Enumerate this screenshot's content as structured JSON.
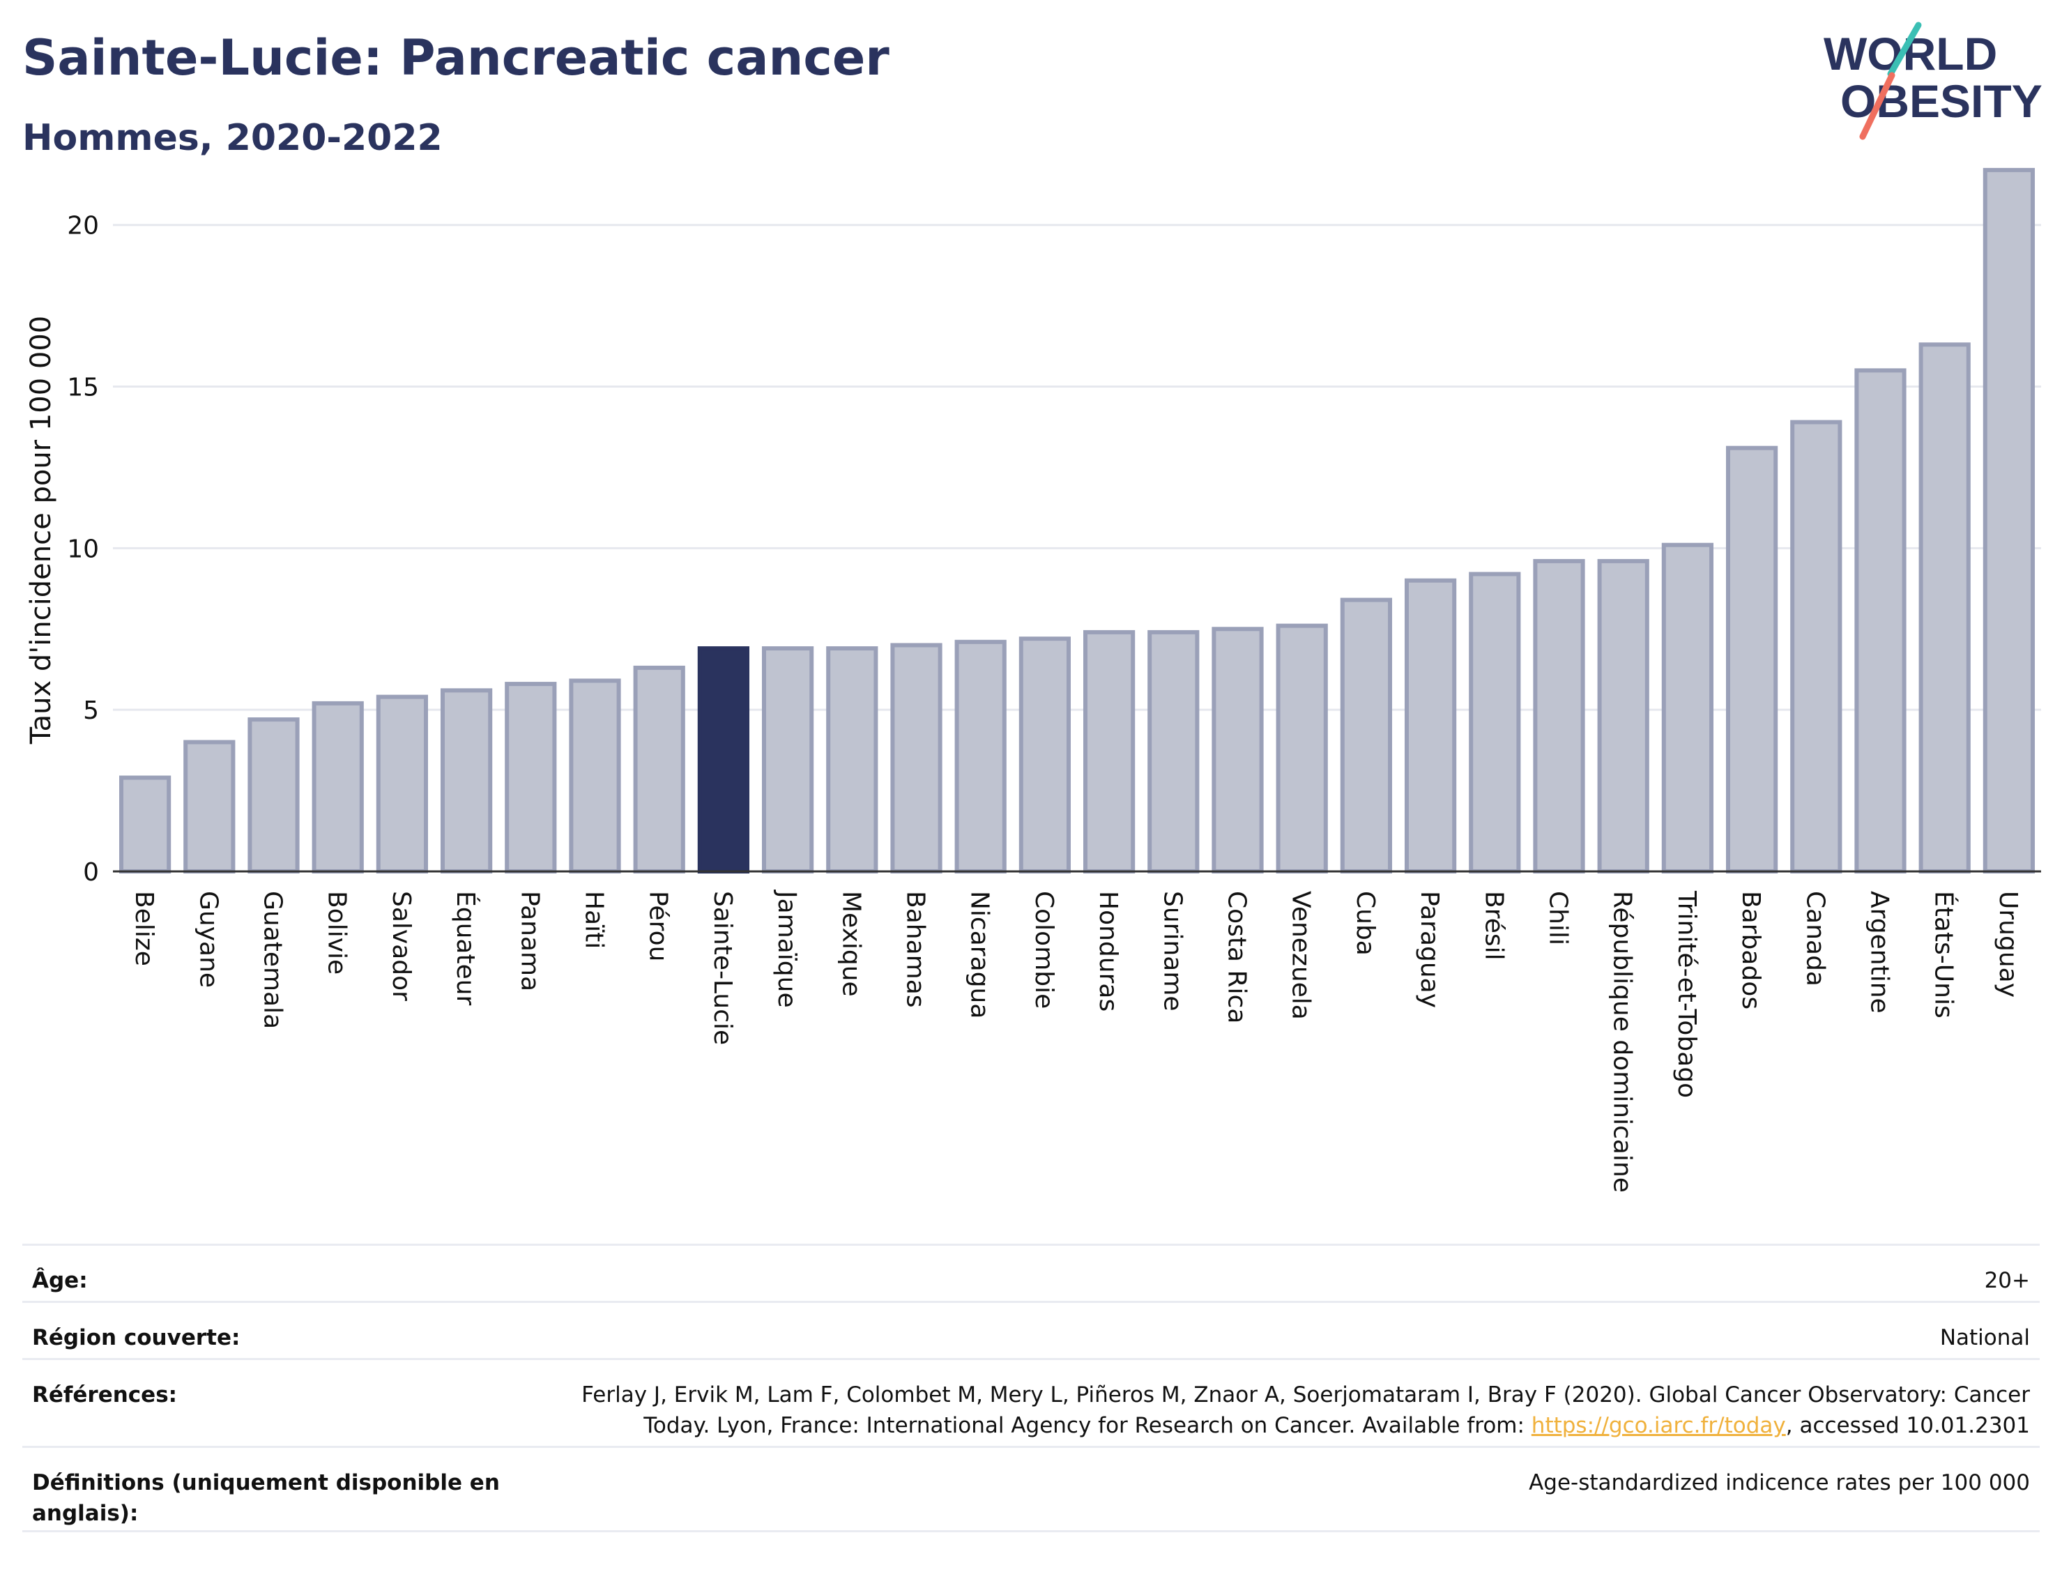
{
  "header": {
    "title": "Sainte-Lucie: Pancreatic cancer",
    "subtitle": "Hommes, 2020-2022"
  },
  "logo": {
    "line1": "WORLD",
    "line2": "OBESITY",
    "colors": {
      "text": "#2a335e",
      "slash_teal": "#3bbfb4",
      "slash_coral": "#ef6f5f"
    }
  },
  "colors": {
    "bar_fill": "#bfc3d0",
    "bar_stroke": "#9aa0b8",
    "highlight_fill": "#2a335e",
    "grid": "#e6e8ee",
    "axis": "#333333"
  },
  "chart_data": {
    "type": "bar",
    "title": "",
    "xlabel": "",
    "ylabel": "Taux d'incidence pour 100 000",
    "ylim": [
      0,
      22
    ],
    "yticks": [
      0,
      5,
      10,
      15,
      20
    ],
    "grid": true,
    "highlight": "Sainte-Lucie",
    "categories": [
      "Belize",
      "Guyane",
      "Guatemala",
      "Bolivie",
      "Salvador",
      "Équateur",
      "Panama",
      "Haïti",
      "Pérou",
      "Sainte-Lucie",
      "Jamaïque",
      "Mexique",
      "Bahamas",
      "Nicaragua",
      "Colombie",
      "Honduras",
      "Suriname",
      "Costa Rica",
      "Venezuela",
      "Cuba",
      "Paraguay",
      "Brésil",
      "Chili",
      "République dominicaine",
      "Trinité-et-Tobago",
      "Barbados",
      "Canada",
      "Argentine",
      "États-Unis",
      "Uruguay"
    ],
    "values": [
      2.9,
      4.0,
      4.7,
      5.2,
      5.4,
      5.6,
      5.8,
      5.9,
      6.3,
      6.9,
      6.9,
      6.9,
      7.0,
      7.1,
      7.2,
      7.4,
      7.4,
      7.5,
      7.6,
      8.4,
      9.0,
      9.2,
      9.6,
      9.6,
      10.1,
      13.1,
      13.9,
      15.5,
      16.3,
      21.7
    ]
  },
  "info": {
    "age_label": "Âge:",
    "age_value": "20+",
    "region_label": "Région couverte:",
    "region_value": "National",
    "references_label": "Références:",
    "references_line1": "Ferlay J, Ervik M, Lam F, Colombet M, Mery L, Piñeros M, Znaor A, Soerjomataram I, Bray F (2020). Global Cancer Observatory: Cancer",
    "references_line2_before": "Today. Lyon, France: International Agency for Research on Cancer. Available from: ",
    "references_link": "https://gco.iarc.fr/today",
    "references_line2_after": ", accessed 10.01.2301",
    "definitions_label": "Définitions (uniquement disponible en anglais):",
    "definitions_value": "Age-standardized indicence rates per 100 000"
  }
}
